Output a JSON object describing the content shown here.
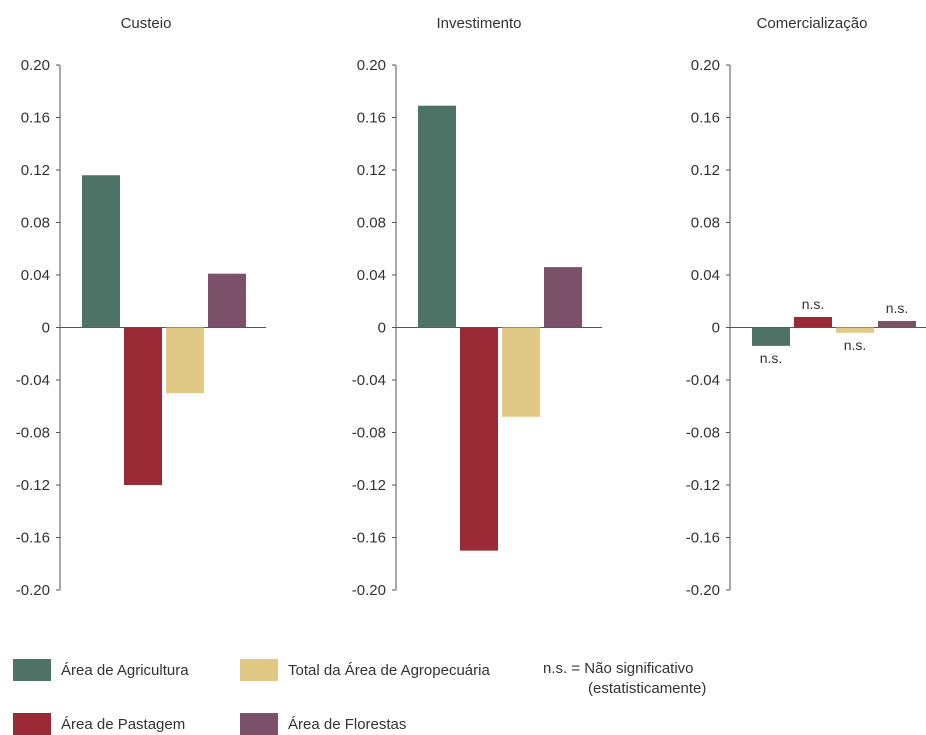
{
  "colors": {
    "agricultura": "#4e7266",
    "pastagem": "#9a2a35",
    "agropecuaria": "#e0c985",
    "florestas": "#7a5169",
    "axis": "#555555"
  },
  "chart_data": [
    {
      "type": "bar",
      "title": "Custeio",
      "ylim": [
        -0.2,
        0.2
      ],
      "yticks": [
        "0.20",
        "0.16",
        "0.12",
        "0.08",
        "0.04",
        "0",
        "-0.04",
        "-0.08",
        "-0.12",
        "-0.16",
        "-0.20"
      ],
      "series": [
        {
          "name": "Área de Agricultura",
          "values": [
            0.116
          ],
          "note": ""
        },
        {
          "name": "Área de Pastagem",
          "values": [
            -0.12
          ],
          "note": ""
        },
        {
          "name": "Total da Área de Agropecuária",
          "values": [
            -0.05
          ],
          "note": ""
        },
        {
          "name": "Área de Florestas",
          "values": [
            0.041
          ],
          "note": ""
        }
      ]
    },
    {
      "type": "bar",
      "title": "Investimento",
      "ylim": [
        -0.2,
        0.2
      ],
      "yticks": [
        "0.20",
        "0.16",
        "0.12",
        "0.08",
        "0.04",
        "0",
        "-0.04",
        "-0.08",
        "-0.12",
        "-0.16",
        "-0.20"
      ],
      "series": [
        {
          "name": "Área de Agricultura",
          "values": [
            0.169
          ],
          "note": ""
        },
        {
          "name": "Área de Pastagem",
          "values": [
            -0.17
          ],
          "note": ""
        },
        {
          "name": "Total da Área de Agropecuária",
          "values": [
            -0.068
          ],
          "note": ""
        },
        {
          "name": "Área de Florestas",
          "values": [
            0.046
          ],
          "note": ""
        }
      ]
    },
    {
      "type": "bar",
      "title": "Comercialização",
      "ylim": [
        -0.2,
        0.2
      ],
      "yticks": [
        "0.20",
        "0.16",
        "0.12",
        "0.08",
        "0.04",
        "0",
        "-0.04",
        "-0.08",
        "-0.12",
        "-0.16",
        "-0.20"
      ],
      "series": [
        {
          "name": "Área de Agricultura",
          "values": [
            -0.014
          ],
          "note": "n.s."
        },
        {
          "name": "Área de Pastagem",
          "values": [
            0.008
          ],
          "note": "n.s."
        },
        {
          "name": "Total da Área de Agropecuária",
          "values": [
            -0.004
          ],
          "note": "n.s."
        },
        {
          "name": "Área de Florestas",
          "values": [
            0.005
          ],
          "note": "n.s."
        }
      ]
    }
  ],
  "legend": {
    "agricultura": "Área de Agricultura",
    "agropecuaria": "Total da Área de Agropecuária",
    "pastagem": "Área de Pastagem",
    "florestas": "Área de Florestas",
    "ns_prefix": "n.s. =",
    "ns_line1": "Não significativo",
    "ns_line2": "(estatisticamente)"
  }
}
